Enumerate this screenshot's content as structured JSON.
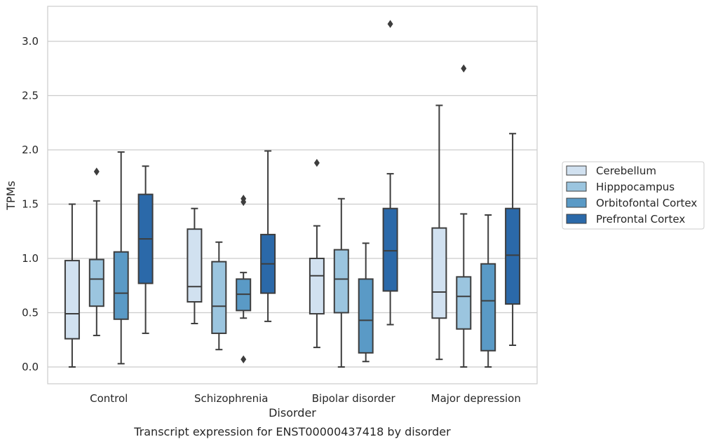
{
  "caption": "Transcript expression for ENST00000437418 by disorder",
  "chart_data": {
    "type": "box",
    "xlabel": "Disorder",
    "ylabel": "TPMs",
    "ylim": [
      -0.15,
      3.3
    ],
    "yticks": [
      0.0,
      0.5,
      1.0,
      1.5,
      2.0,
      2.5,
      3.0
    ],
    "ytick_labels": [
      "0.0",
      "0.5",
      "1.0",
      "1.5",
      "2.0",
      "2.5",
      "3.0"
    ],
    "grid": true,
    "legend_position": "right",
    "categories": [
      "Control",
      "Schizophrenia",
      "Bipolar disorder",
      "Major depression"
    ],
    "series": [
      {
        "name": "Cerebellum",
        "color": "#d1e1f0",
        "boxes": [
          {
            "whisker_low": 0.0,
            "q1": 0.26,
            "median": 0.49,
            "q3": 0.98,
            "whisker_high": 1.5,
            "outliers": []
          },
          {
            "whisker_low": 0.4,
            "q1": 0.6,
            "median": 0.74,
            "q3": 1.27,
            "whisker_high": 1.46,
            "outliers": []
          },
          {
            "whisker_low": 0.18,
            "q1": 0.49,
            "median": 0.84,
            "q3": 1.0,
            "whisker_high": 1.3,
            "outliers": [
              1.88
            ]
          },
          {
            "whisker_low": 0.07,
            "q1": 0.45,
            "median": 0.69,
            "q3": 1.28,
            "whisker_high": 2.41,
            "outliers": []
          }
        ]
      },
      {
        "name": "Hipppocampus",
        "color": "#9bc5df",
        "boxes": [
          {
            "whisker_low": 0.29,
            "q1": 0.56,
            "median": 0.81,
            "q3": 0.99,
            "whisker_high": 1.53,
            "outliers": [
              1.8
            ]
          },
          {
            "whisker_low": 0.16,
            "q1": 0.31,
            "median": 0.56,
            "q3": 0.97,
            "whisker_high": 1.15,
            "outliers": []
          },
          {
            "whisker_low": 0.0,
            "q1": 0.5,
            "median": 0.81,
            "q3": 1.08,
            "whisker_high": 1.55,
            "outliers": []
          },
          {
            "whisker_low": 0.0,
            "q1": 0.35,
            "median": 0.65,
            "q3": 0.83,
            "whisker_high": 1.41,
            "outliers": [
              2.75
            ]
          }
        ]
      },
      {
        "name": "Orbitofontal Cortex",
        "color": "#5a9ac6",
        "boxes": [
          {
            "whisker_low": 0.03,
            "q1": 0.44,
            "median": 0.68,
            "q3": 1.06,
            "whisker_high": 1.98,
            "outliers": []
          },
          {
            "whisker_low": 0.45,
            "q1": 0.52,
            "median": 0.67,
            "q3": 0.81,
            "whisker_high": 0.87,
            "outliers": [
              1.52,
              1.55,
              0.07
            ]
          },
          {
            "whisker_low": 0.05,
            "q1": 0.13,
            "median": 0.43,
            "q3": 0.81,
            "whisker_high": 1.14,
            "outliers": []
          },
          {
            "whisker_low": 0.0,
            "q1": 0.15,
            "median": 0.61,
            "q3": 0.95,
            "whisker_high": 1.4,
            "outliers": []
          }
        ]
      },
      {
        "name": "Prefrontal Cortex",
        "color": "#2b69a9",
        "boxes": [
          {
            "whisker_low": 0.31,
            "q1": 0.77,
            "median": 1.18,
            "q3": 1.59,
            "whisker_high": 1.85,
            "outliers": []
          },
          {
            "whisker_low": 0.42,
            "q1": 0.68,
            "median": 0.95,
            "q3": 1.22,
            "whisker_high": 1.99,
            "outliers": []
          },
          {
            "whisker_low": 0.39,
            "q1": 0.7,
            "median": 1.07,
            "q3": 1.46,
            "whisker_high": 1.78,
            "outliers": [
              3.16
            ]
          },
          {
            "whisker_low": 0.2,
            "q1": 0.58,
            "median": 1.03,
            "q3": 1.46,
            "whisker_high": 2.15,
            "outliers": []
          }
        ]
      }
    ],
    "style": {
      "edge_color": "#3d3d3d",
      "grid_color": "#cccccc",
      "frame_color": "#cccccc"
    }
  }
}
